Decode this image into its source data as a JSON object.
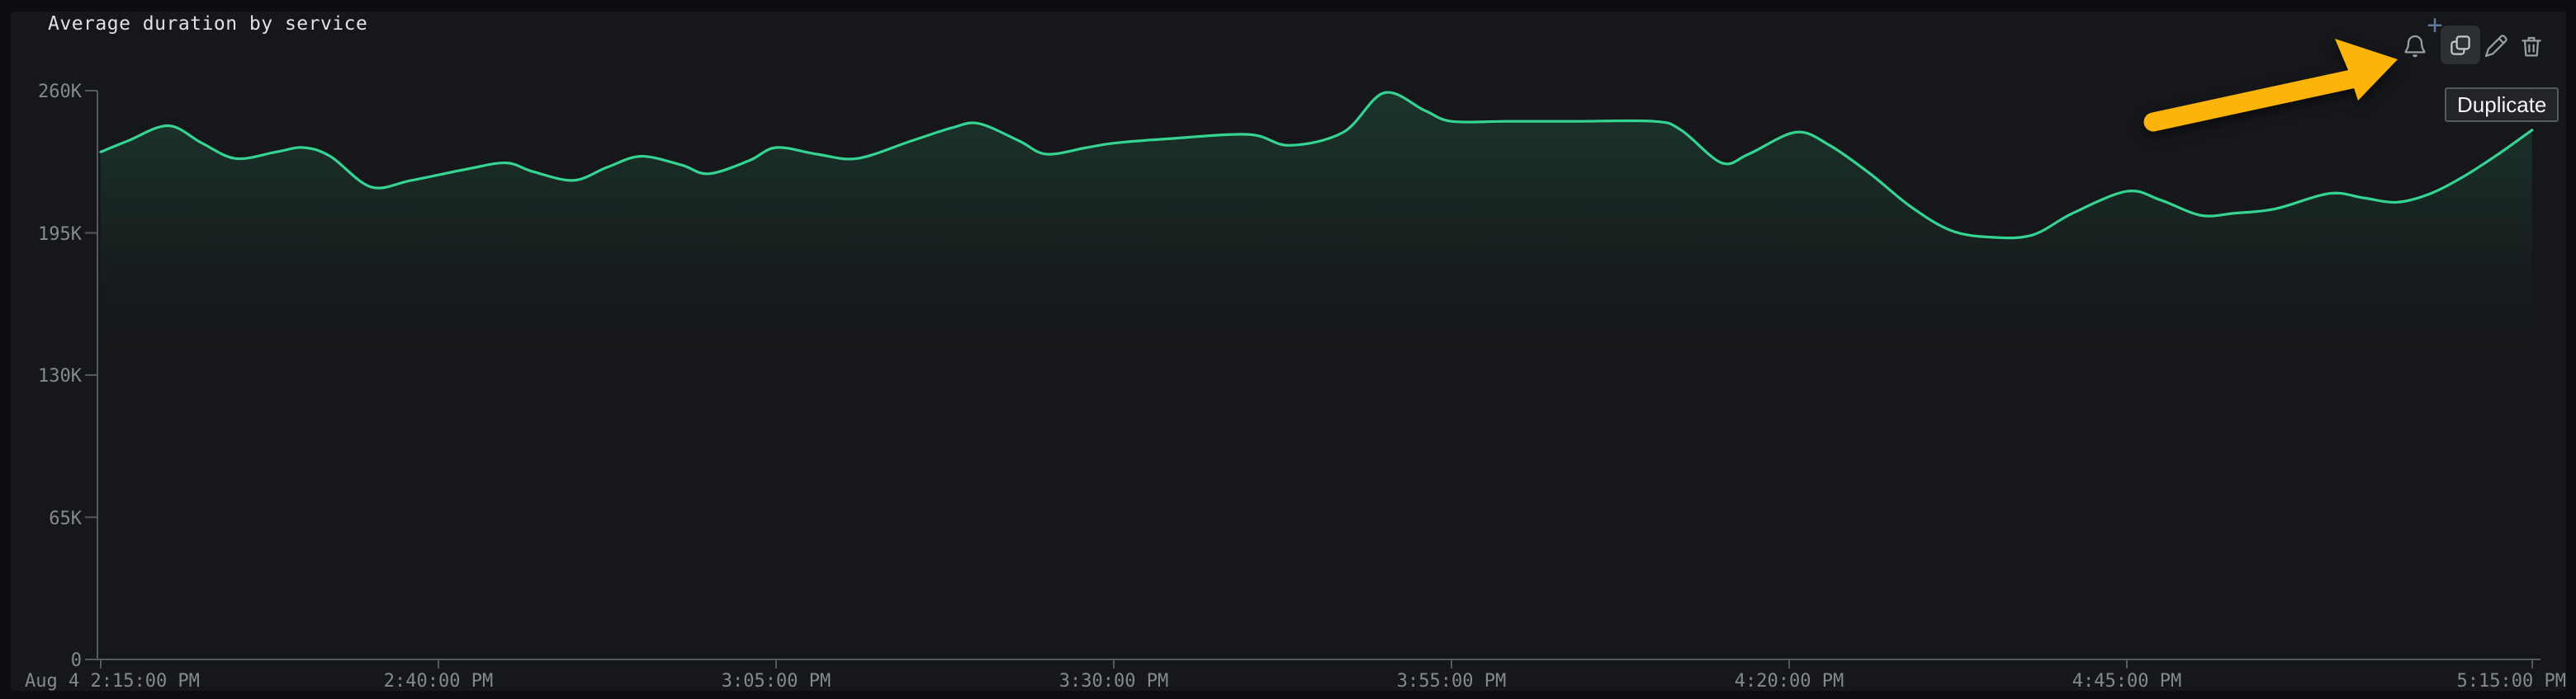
{
  "panel": {
    "title": "Average duration by service"
  },
  "toolbar": {
    "plus_glyph": "+",
    "tooltip": "Duplicate",
    "buttons": [
      {
        "id": "alert",
        "icon": "bell-icon"
      },
      {
        "id": "duplicate",
        "icon": "copy-icon",
        "state": "hovered"
      },
      {
        "id": "edit",
        "icon": "pencil-icon"
      },
      {
        "id": "delete",
        "icon": "trash-icon"
      }
    ]
  },
  "annotation_arrow": {
    "color": "#fcb40a",
    "points_at": "duplicate-button"
  },
  "chart_data": {
    "type": "line",
    "title": "Average duration by service",
    "grid": false,
    "legend": false,
    "value_unit": "thousands",
    "x_axis": {
      "unit": "time",
      "range_minutes": [
        0,
        180
      ],
      "ticks": [
        {
          "minutes": 0,
          "label": "Aug 4 2:15:00 PM",
          "align": "start"
        },
        {
          "minutes": 25,
          "label": "2:40:00 PM",
          "align": "middle"
        },
        {
          "minutes": 50,
          "label": "3:05:00 PM",
          "align": "middle"
        },
        {
          "minutes": 75,
          "label": "3:30:00 PM",
          "align": "middle"
        },
        {
          "minutes": 100,
          "label": "3:55:00 PM",
          "align": "middle"
        },
        {
          "minutes": 125,
          "label": "4:20:00 PM",
          "align": "middle"
        },
        {
          "minutes": 150,
          "label": "4:45:00 PM",
          "align": "middle"
        },
        {
          "minutes": 180,
          "label": "5:15:00 PM",
          "align": "end"
        }
      ]
    },
    "y_axis": {
      "range": [
        0,
        260000
      ],
      "ticks": [
        {
          "value": 0,
          "label": "0"
        },
        {
          "value": 65000,
          "label": "65K"
        },
        {
          "value": 130000,
          "label": "130K"
        },
        {
          "value": 195000,
          "label": "195K"
        },
        {
          "value": 260000,
          "label": "260K"
        }
      ]
    },
    "series": [
      {
        "name": "Average duration",
        "color": "#35d492",
        "points_minutes_vs_k": [
          [
            0,
            232
          ],
          [
            2,
            237
          ],
          [
            5,
            244
          ],
          [
            7.5,
            236
          ],
          [
            10,
            229
          ],
          [
            13,
            232
          ],
          [
            15,
            234
          ],
          [
            17,
            230
          ],
          [
            20,
            216
          ],
          [
            23,
            219
          ],
          [
            27,
            224
          ],
          [
            30,
            227
          ],
          [
            32,
            223
          ],
          [
            35,
            219
          ],
          [
            37.5,
            225
          ],
          [
            40,
            230
          ],
          [
            43,
            226
          ],
          [
            45,
            222
          ],
          [
            48,
            228
          ],
          [
            50,
            234
          ],
          [
            53,
            231
          ],
          [
            56,
            229
          ],
          [
            60,
            237
          ],
          [
            63,
            243
          ],
          [
            65,
            245
          ],
          [
            68,
            237
          ],
          [
            70,
            231
          ],
          [
            73,
            234
          ],
          [
            75,
            236
          ],
          [
            79,
            238
          ],
          [
            85,
            240
          ],
          [
            88,
            235
          ],
          [
            92,
            241
          ],
          [
            95,
            259
          ],
          [
            98,
            251
          ],
          [
            100,
            246
          ],
          [
            104,
            246
          ],
          [
            109,
            246
          ],
          [
            115,
            246
          ],
          [
            117,
            242
          ],
          [
            120,
            227
          ],
          [
            122,
            231
          ],
          [
            125.5,
            241
          ],
          [
            128,
            235
          ],
          [
            131,
            222
          ],
          [
            134,
            207
          ],
          [
            137,
            196
          ],
          [
            140,
            193
          ],
          [
            143,
            194
          ],
          [
            146,
            204
          ],
          [
            150,
            214
          ],
          [
            152.5,
            210
          ],
          [
            155.5,
            203
          ],
          [
            158,
            204
          ],
          [
            161,
            206
          ],
          [
            165,
            213
          ],
          [
            167.5,
            211
          ],
          [
            170,
            209
          ],
          [
            172.5,
            213
          ],
          [
            175,
            221
          ],
          [
            177.5,
            231
          ],
          [
            180,
            242
          ]
        ]
      }
    ]
  }
}
